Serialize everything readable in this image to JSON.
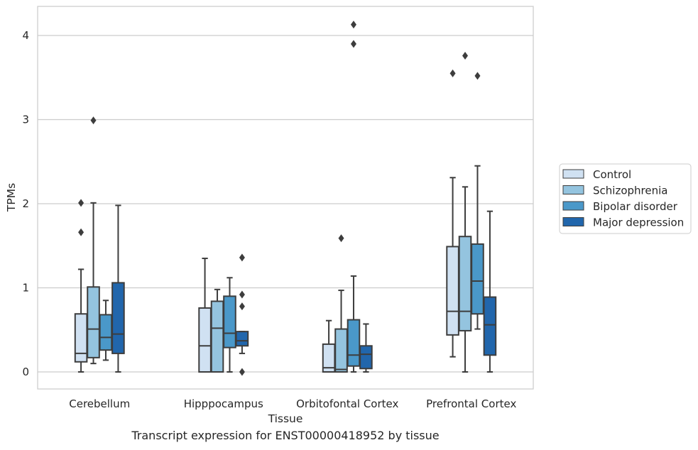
{
  "caption": "Transcript expression for ENST00000418952 by tissue",
  "chart_data": {
    "type": "boxplot",
    "xlabel": "Tissue",
    "ylabel": "TPMs",
    "ylim": [
      -0.2,
      4.35
    ],
    "yticks": [
      0,
      1,
      2,
      3,
      4
    ],
    "grid": "horizontal",
    "legend_position": "right",
    "categories": [
      "Cerebellum",
      "Hipppocampus",
      "Orbitofontal Cortex",
      "Prefrontal Cortex"
    ],
    "series": [
      {
        "name": "Control",
        "color": "#d0e1f2",
        "boxes": [
          {
            "whislo": 0.0,
            "q1": 0.12,
            "med": 0.22,
            "q3": 0.69,
            "whishi": 1.22,
            "fliers": [
              2.01,
              1.66
            ]
          },
          {
            "whislo": 0.0,
            "q1": 0.0,
            "med": 0.31,
            "q3": 0.76,
            "whishi": 1.35,
            "fliers": []
          },
          {
            "whislo": 0.0,
            "q1": 0.0,
            "med": 0.05,
            "q3": 0.33,
            "whishi": 0.61,
            "fliers": []
          },
          {
            "whislo": 0.18,
            "q1": 0.44,
            "med": 0.72,
            "q3": 1.49,
            "whishi": 2.31,
            "fliers": [
              3.55
            ]
          }
        ]
      },
      {
        "name": "Schizophrenia",
        "color": "#94c4df",
        "boxes": [
          {
            "whislo": 0.1,
            "q1": 0.17,
            "med": 0.51,
            "q3": 1.01,
            "whishi": 2.01,
            "fliers": [
              2.99
            ]
          },
          {
            "whislo": 0.0,
            "q1": 0.0,
            "med": 0.52,
            "q3": 0.84,
            "whishi": 0.98,
            "fliers": []
          },
          {
            "whislo": 0.0,
            "q1": 0.0,
            "med": 0.03,
            "q3": 0.51,
            "whishi": 0.97,
            "fliers": [
              1.59
            ]
          },
          {
            "whislo": 0.0,
            "q1": 0.49,
            "med": 0.72,
            "q3": 1.61,
            "whishi": 2.2,
            "fliers": [
              3.76
            ]
          }
        ]
      },
      {
        "name": "Bipolar disorder",
        "color": "#4a98c9",
        "boxes": [
          {
            "whislo": 0.14,
            "q1": 0.26,
            "med": 0.41,
            "q3": 0.68,
            "whishi": 0.85,
            "fliers": []
          },
          {
            "whislo": 0.0,
            "q1": 0.29,
            "med": 0.46,
            "q3": 0.9,
            "whishi": 1.12,
            "fliers": []
          },
          {
            "whislo": 0.0,
            "q1": 0.07,
            "med": 0.2,
            "q3": 0.62,
            "whishi": 1.14,
            "fliers": [
              4.13,
              3.9
            ]
          },
          {
            "whislo": 0.51,
            "q1": 0.69,
            "med": 1.08,
            "q3": 1.52,
            "whishi": 2.45,
            "fliers": [
              3.52
            ]
          }
        ]
      },
      {
        "name": "Major depression",
        "color": "#2166ac",
        "boxes": [
          {
            "whislo": 0.0,
            "q1": 0.22,
            "med": 0.45,
            "q3": 1.06,
            "whishi": 1.98,
            "fliers": []
          },
          {
            "whislo": 0.22,
            "q1": 0.31,
            "med": 0.37,
            "q3": 0.48,
            "whishi": 0.48,
            "fliers": [
              1.36,
              0.92,
              0.78,
              0.0
            ]
          },
          {
            "whislo": 0.0,
            "q1": 0.04,
            "med": 0.21,
            "q3": 0.31,
            "whishi": 0.57,
            "fliers": []
          },
          {
            "whislo": 0.0,
            "q1": 0.2,
            "med": 0.56,
            "q3": 0.89,
            "whishi": 1.91,
            "fliers": []
          }
        ]
      }
    ]
  }
}
